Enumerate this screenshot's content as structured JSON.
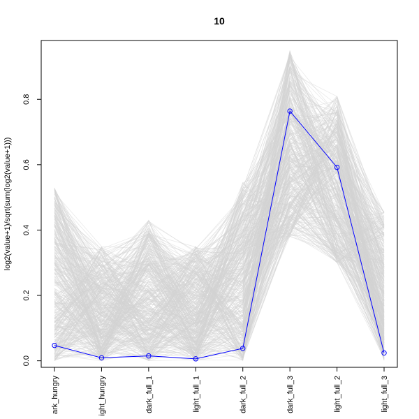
{
  "chart_data": {
    "type": "line",
    "title": "10",
    "xlabel": "",
    "ylabel": "log2(value+1)/sqrt(sum(log2(value+1)))",
    "categories": [
      "dark_hungry",
      "light_hungry",
      "dark_full_1",
      "light_full_1",
      "dark_full_2",
      "dark_full_3",
      "light_full_2",
      "light_full_3"
    ],
    "category_labels": [
      "ark_hungry",
      "ight_hungry",
      "dark_full_1",
      "light_full_1",
      "dark_full_2",
      "dark_full_3",
      "light_full_2",
      "light_full_3"
    ],
    "yticks": [
      0.0,
      0.2,
      0.4,
      0.6,
      0.8
    ],
    "ytick_labels": [
      "0.0",
      "0.2",
      "0.4",
      "0.6",
      "0.8"
    ],
    "ylim": [
      -0.02,
      0.98
    ],
    "grid": false,
    "colors": {
      "background_lines": "#d3d3d3",
      "highlight": "#0000ff",
      "axis": "#000000"
    },
    "background_band": {
      "description_count": 400,
      "ranges": [
        [
          0.0,
          0.53
        ],
        [
          0.0,
          0.35
        ],
        [
          0.0,
          0.43
        ],
        [
          0.0,
          0.35
        ],
        [
          0.0,
          0.55
        ],
        [
          0.38,
          0.95
        ],
        [
          0.3,
          0.81
        ],
        [
          0.0,
          0.46
        ]
      ]
    },
    "series": [
      {
        "values": [
          0.047,
          0.009,
          0.015,
          0.006,
          0.038,
          0.764,
          0.592,
          0.024
        ]
      }
    ]
  }
}
